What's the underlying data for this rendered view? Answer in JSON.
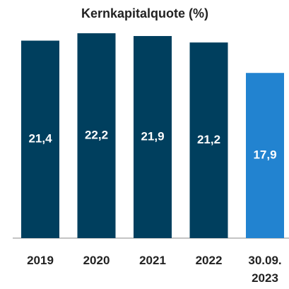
{
  "chart_data": {
    "type": "bar",
    "title": "Kernkapitalquote (%)",
    "categories": [
      "2019",
      "2020",
      "2021",
      "2022",
      "30.09. 2023"
    ],
    "values": [
      21.4,
      22.2,
      21.9,
      21.2,
      17.9
    ],
    "value_labels": [
      "21,4",
      "22,2",
      "21,9",
      "21,2",
      "17,9"
    ],
    "colors": [
      "#003f5e",
      "#003f5e",
      "#003f5e",
      "#003f5e",
      "#2283d0"
    ]
  }
}
